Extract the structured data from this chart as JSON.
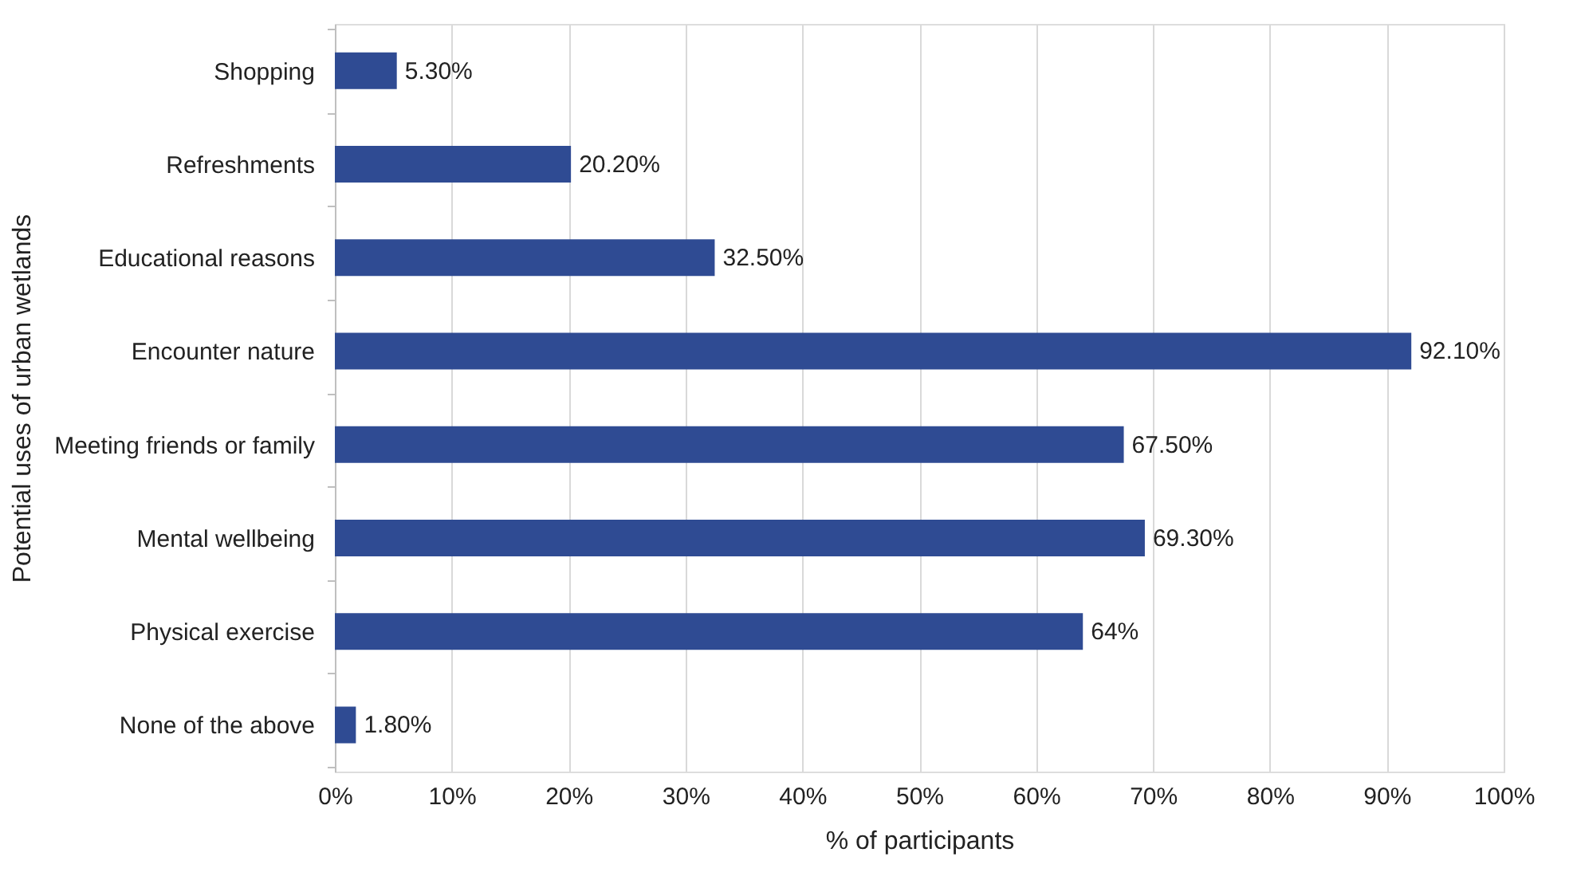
{
  "chart_data": {
    "type": "bar",
    "orientation": "horizontal",
    "categories": [
      "Shopping",
      "Refreshments",
      "Educational reasons",
      "Encounter nature",
      "Meeting friends or family",
      "Mental wellbeing",
      "Physical exercise",
      "None of the above"
    ],
    "values": [
      5.3,
      20.2,
      32.5,
      92.1,
      67.5,
      69.3,
      64,
      1.8
    ],
    "value_labels": [
      "5.30%",
      "20.20%",
      "32.50%",
      "92.10%",
      "67.50%",
      "69.30%",
      "64%",
      "1.80%"
    ],
    "color": "#2f4b93",
    "xlabel": "% of participants",
    "ylabel": "Potential uses of urban wetlands",
    "xlim": [
      0,
      100
    ],
    "xticks": [
      {
        "value": 0,
        "label": "0%"
      },
      {
        "value": 10,
        "label": "10%"
      },
      {
        "value": 20,
        "label": "20%"
      },
      {
        "value": 30,
        "label": "30%"
      },
      {
        "value": 40,
        "label": "40%"
      },
      {
        "value": 50,
        "label": "50%"
      },
      {
        "value": 60,
        "label": "60%"
      },
      {
        "value": 70,
        "label": "70%"
      },
      {
        "value": 80,
        "label": "80%"
      },
      {
        "value": 90,
        "label": "90%"
      },
      {
        "value": 100,
        "label": "100%"
      }
    ],
    "grid": "x"
  }
}
